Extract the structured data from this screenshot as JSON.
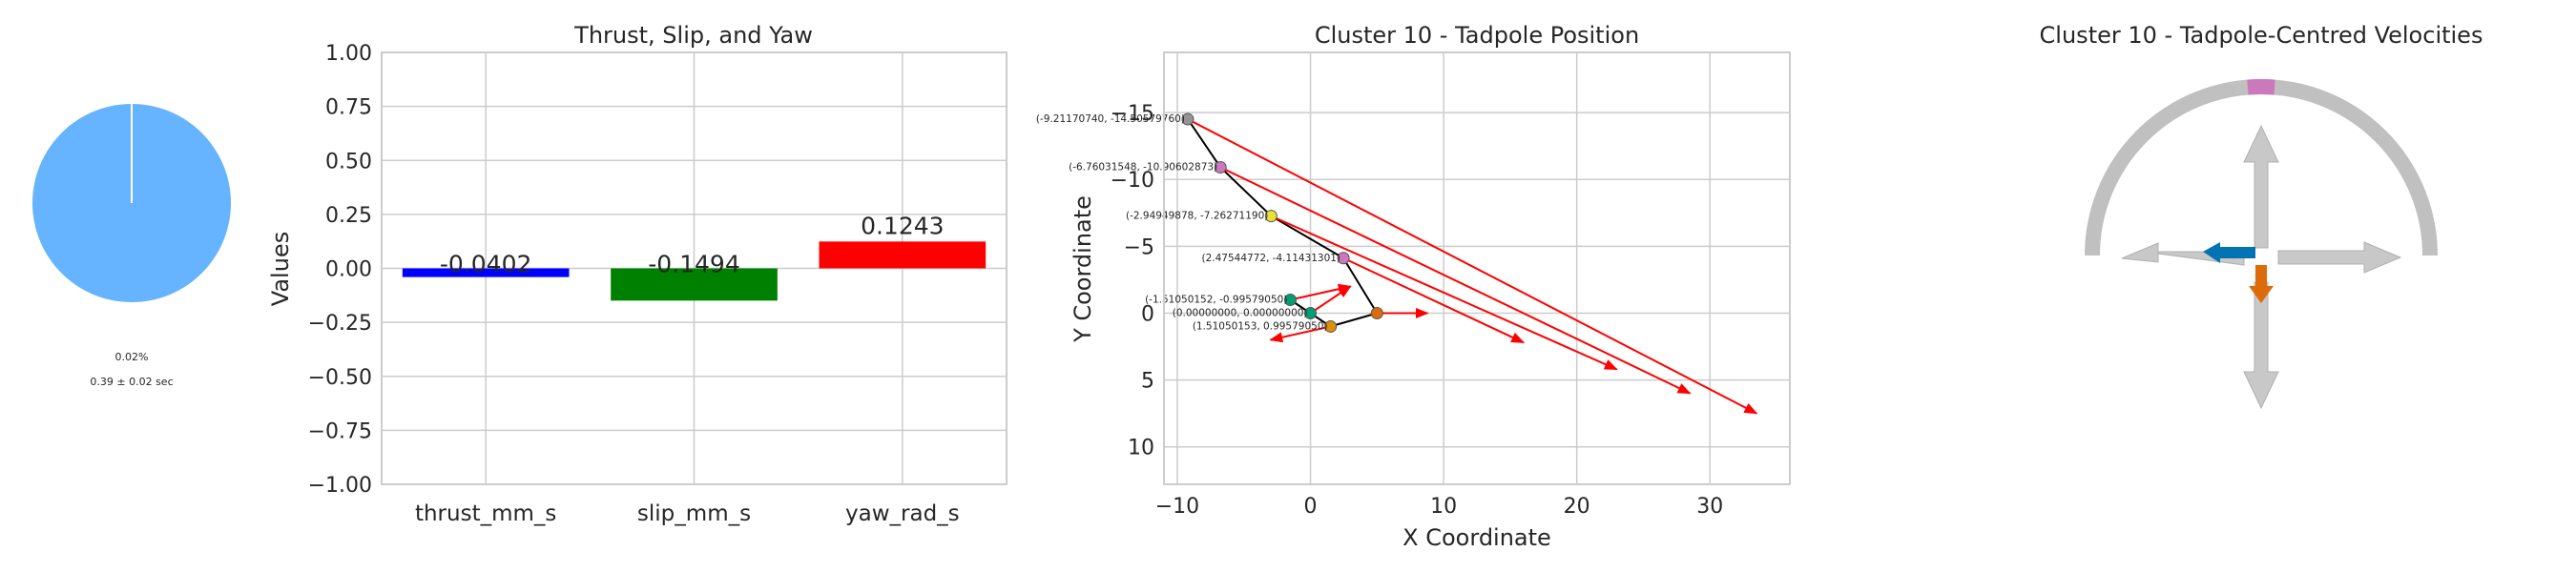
{
  "colors": {
    "pie_main": "#66b3ff",
    "thrust": "#0000ff",
    "slip": "#008000",
    "yaw": "#ff0000",
    "arrow": "#ff0000",
    "path": "#000000",
    "gauge_bg": "#c0c0c0",
    "gauge_marker": "#cc78bc",
    "vel_left": "#0173b2",
    "vel_down": "#de6b0b"
  },
  "pie": {
    "label_percent": "0.02%",
    "label_time": "0.39 ± 0.02 sec",
    "fraction": 0.0002
  },
  "chart_data": [
    {
      "type": "bar",
      "title": "Thrust, Slip, and Yaw",
      "xlabel": "",
      "ylabel": "Values",
      "categories": [
        "thrust_mm_s",
        "slip_mm_s",
        "yaw_rad_s"
      ],
      "values": [
        -0.0402,
        -0.1494,
        0.1243
      ],
      "value_labels": [
        "-0.0402",
        "-0.1494",
        "0.1243"
      ],
      "ylim": [
        -1.0,
        1.0
      ],
      "yticks": [
        -1.0,
        -0.75,
        -0.5,
        -0.25,
        0.0,
        0.25,
        0.5,
        0.75,
        1.0
      ],
      "ytick_labels": [
        "−1.00",
        "−0.75",
        "−0.50",
        "−0.25",
        "0.00",
        "0.25",
        "0.50",
        "0.75",
        "1.00"
      ],
      "grid": true
    },
    {
      "type": "scatter",
      "title": "Cluster 10 - Tadpole Position",
      "xlabel": "X Coordinate",
      "ylabel": "Y Coordinate",
      "xlim": [
        -11,
        36
      ],
      "ylim": [
        -19.5,
        12.8
      ],
      "y_inverted": true,
      "xticks": [
        -10,
        0,
        10,
        20,
        30
      ],
      "xtick_labels": [
        "−10",
        "0",
        "10",
        "20",
        "30"
      ],
      "yticks": [
        -15,
        -10,
        -5,
        0,
        5,
        10
      ],
      "ytick_labels": [
        "−15",
        "−10",
        "−5",
        "0",
        "5",
        "10"
      ],
      "grid": true,
      "points": [
        {
          "x": -9.2117074,
          "y": -14.505797,
          "label": "(-9.21170740, -14.50579760)",
          "color": "#949494"
        },
        {
          "x": -6.76031548,
          "y": -10.90602873,
          "label": "(-6.76031548, -10.90602873)",
          "color": "#cc78bc"
        },
        {
          "x": -2.94949878,
          "y": -7.2627119,
          "label": "(-2.94949878, -7.26271190)",
          "color": "#ece133"
        },
        {
          "x": 2.47544772,
          "y": -4.114313,
          "label": "(2.47544772, -4.11431301)",
          "color": "#cc78bc"
        },
        {
          "x": 5.0,
          "y": 0.0,
          "label": "",
          "color": "#de6b0b"
        },
        {
          "x": 1.51050153,
          "y": 0.9957905,
          "label": "(1.51050153, 0.99579050)",
          "color": "#de8f05"
        },
        {
          "x": 0.0,
          "y": 0.0,
          "label": "(0.00000000, 0.00000000)",
          "color": "#029e73"
        },
        {
          "x": -1.51050152,
          "y": -0.9957905,
          "label": "(-1.51050152, -0.99579050)",
          "color": "#029e73"
        }
      ],
      "path_order": [
        0,
        1,
        2,
        3,
        4,
        5,
        6,
        7
      ],
      "velocity_arrows": [
        {
          "from": [
            -9.2117074,
            -14.505797
          ],
          "to": [
            33.5,
            7.5
          ]
        },
        {
          "from": [
            -6.76031548,
            -10.90602873
          ],
          "to": [
            28.5,
            6.0
          ]
        },
        {
          "from": [
            -2.94949878,
            -7.2627119
          ],
          "to": [
            23.0,
            4.2
          ]
        },
        {
          "from": [
            2.47544772,
            -4.114313
          ],
          "to": [
            16.0,
            2.2
          ]
        },
        {
          "from": [
            5.0,
            0.0
          ],
          "to": [
            8.8,
            0.0
          ]
        },
        {
          "from": [
            1.51050153,
            0.9957905
          ],
          "to": [
            -3.0,
            2.0
          ]
        },
        {
          "from": [
            0.0,
            0.0
          ],
          "to": [
            3.0,
            -2.0
          ]
        },
        {
          "from": [
            -1.51050152,
            -0.9957905
          ],
          "to": [
            3.0,
            -2.0
          ]
        }
      ]
    }
  ],
  "velocity_panel": {
    "title": "Cluster 10 - Tadpole-Centred Velocities",
    "marker_angle_deg": 90,
    "vectors": [
      {
        "direction": "left",
        "magnitude": 0.55,
        "color": "#0173b2"
      },
      {
        "direction": "down",
        "magnitude": 0.4,
        "color": "#de6b0b"
      }
    ]
  }
}
